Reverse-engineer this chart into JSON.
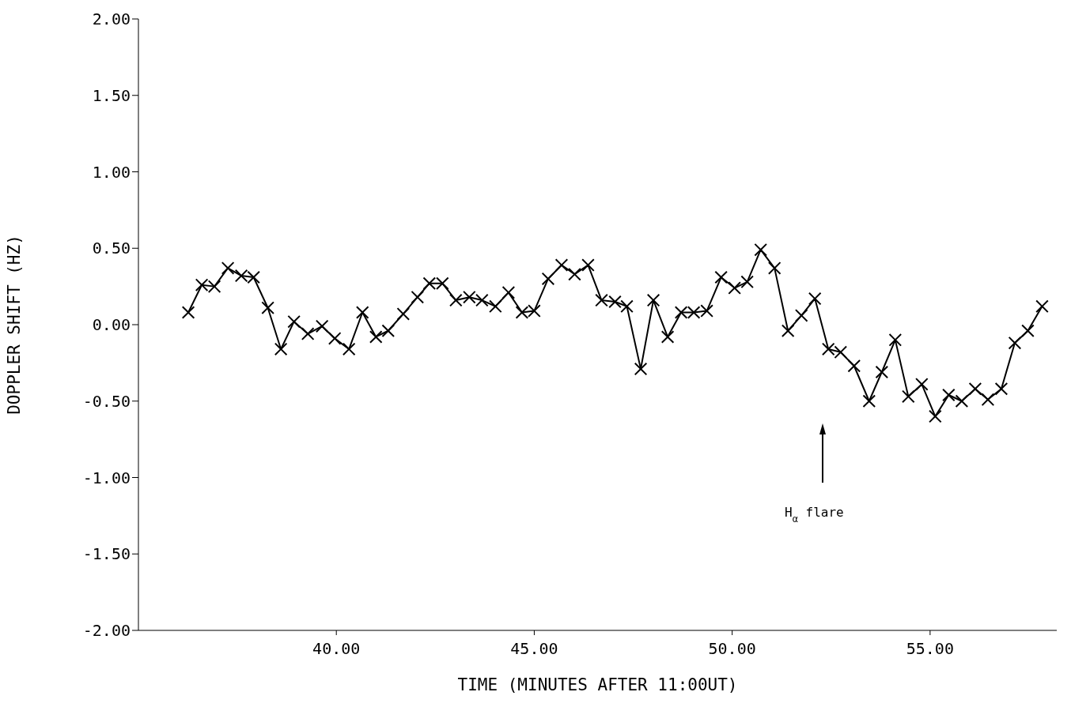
{
  "chart_data": {
    "type": "line",
    "xlabel": "TIME (MINUTES AFTER 11:00UT)",
    "ylabel": "DOPPLER SHIFT (HZ)",
    "x": [
      36.26,
      36.6,
      36.92,
      37.26,
      37.6,
      37.91,
      38.27,
      38.6,
      38.93,
      39.28,
      39.64,
      39.96,
      40.32,
      40.66,
      41.0,
      41.31,
      41.69,
      42.05,
      42.35,
      42.68,
      43.02,
      43.36,
      43.68,
      44.02,
      44.35,
      44.69,
      45.0,
      45.35,
      45.69,
      46.02,
      46.36,
      46.7,
      47.04,
      47.34,
      47.69,
      48.01,
      48.37,
      48.71,
      49.03,
      49.36,
      49.72,
      50.06,
      50.38,
      50.72,
      51.07,
      51.41,
      51.75,
      52.09,
      52.43,
      52.74,
      53.08,
      53.46,
      53.78,
      54.12,
      54.45,
      54.79,
      55.13,
      55.47,
      55.8,
      56.14,
      56.46,
      56.8,
      57.14,
      57.47,
      57.83
    ],
    "series": [
      {
        "color": "#000000",
        "values": [
          0.08,
          0.26,
          0.25,
          0.37,
          0.32,
          0.31,
          0.11,
          -0.16,
          0.02,
          -0.06,
          -0.01,
          -0.09,
          -0.16,
          0.08,
          -0.08,
          -0.04,
          0.07,
          0.18,
          0.27,
          0.27,
          0.16,
          0.18,
          0.16,
          0.12,
          0.21,
          0.08,
          0.09,
          0.3,
          0.39,
          0.33,
          0.39,
          0.16,
          0.15,
          0.12,
          -0.29,
          0.16,
          -0.08,
          0.08,
          0.08,
          0.09,
          0.31,
          0.24,
          0.28,
          0.49,
          0.37,
          -0.04,
          0.06,
          0.17,
          -0.16,
          -0.18,
          -0.27,
          -0.5,
          -0.31,
          -0.1,
          -0.47,
          -0.39,
          -0.6,
          -0.46,
          -0.5,
          -0.42,
          -0.49,
          -0.42,
          -0.12,
          -0.04,
          0.12
        ]
      }
    ],
    "xlim": [
      35,
      58.2
    ],
    "xticks": [
      {
        "value": 40,
        "label": "40.00"
      },
      {
        "value": 45,
        "label": "45.00"
      },
      {
        "value": 50,
        "label": "50.00"
      },
      {
        "value": 55,
        "label": "55.00"
      }
    ],
    "ylim": [
      -2,
      2
    ],
    "yticks": [
      {
        "value": -2,
        "label": "-2.00"
      },
      {
        "value": -1.5,
        "label": "-1.50"
      },
      {
        "value": -1,
        "label": "-1.00"
      },
      {
        "value": -0.5,
        "label": "-0.50"
      },
      {
        "value": 0,
        "label": "0.00"
      },
      {
        "value": 0.5,
        "label": "0.50"
      },
      {
        "value": 1,
        "label": "1.00"
      },
      {
        "value": 1.5,
        "label": "1.50"
      },
      {
        "value": 2,
        "label": "2.00"
      }
    ],
    "annotations": [
      "H$_{α}$ flare"
    ],
    "grid": false,
    "legend": false,
    "marker": "cross",
    "line_style": "solid"
  }
}
